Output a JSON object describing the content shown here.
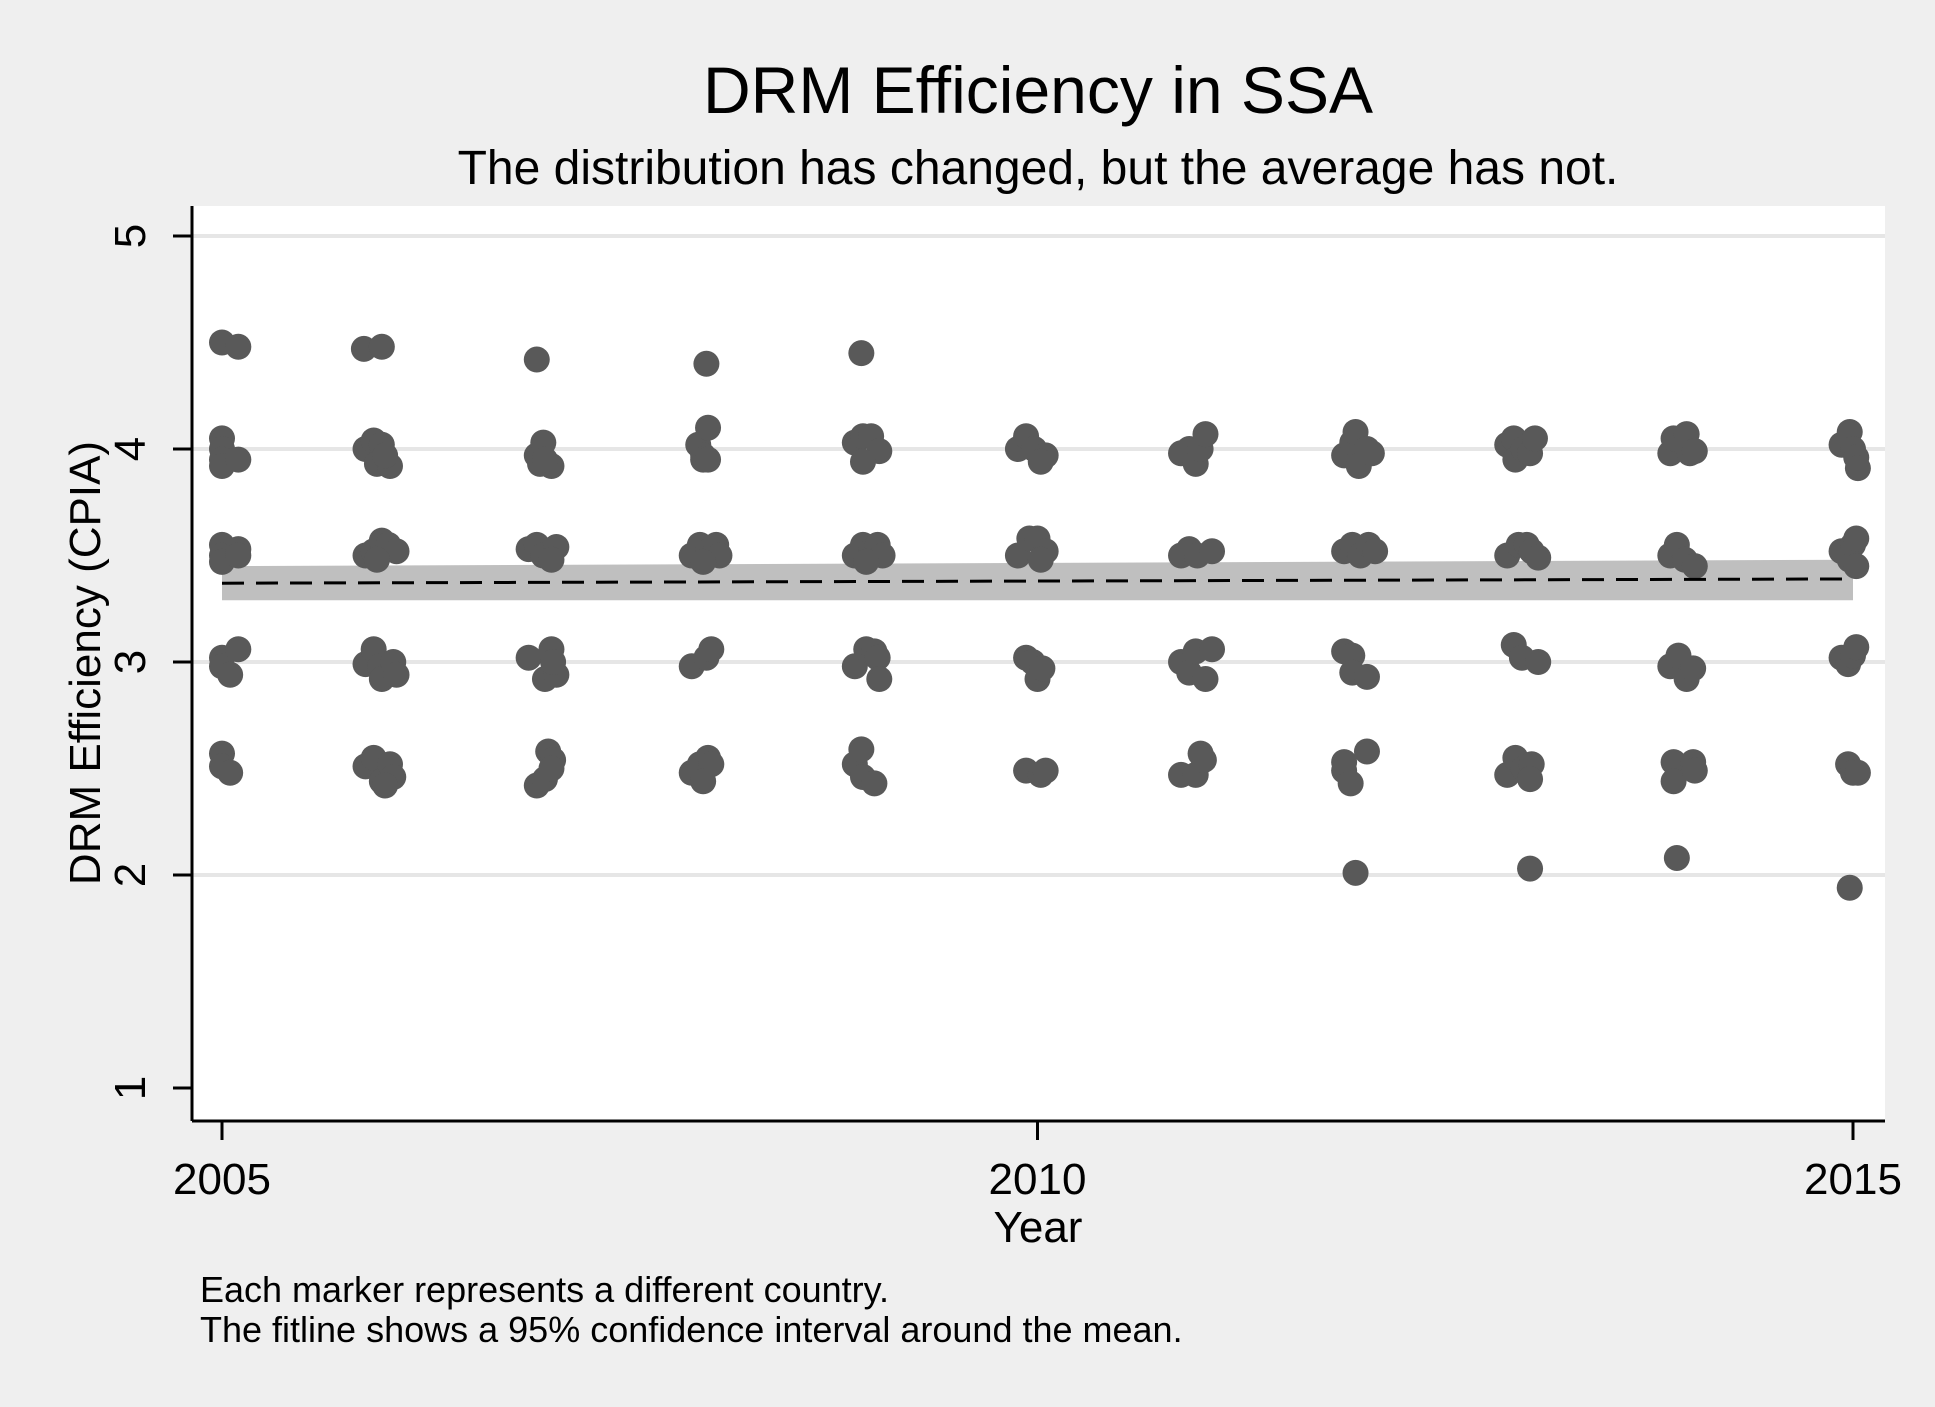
{
  "chart_data": {
    "type": "scatter",
    "title": "DRM Efficiency in SSA",
    "subtitle": "The distribution has changed, but the average has not.",
    "xlabel": "Year",
    "ylabel": "DRM Efficiency (CPIA)",
    "xlim": [
      2005,
      2015
    ],
    "ylim": [
      1,
      5
    ],
    "xticks": [
      2005,
      2010,
      2015
    ],
    "yticks": [
      1,
      2,
      3,
      4,
      5
    ],
    "grid": true,
    "legend": "none",
    "notes": [
      "Each marker represents a different country.",
      "The fitline shows a 95% confidence interval around the mean."
    ],
    "colors": {
      "background": "#efefef",
      "plot_background": "#ffffff",
      "marker": "#595959",
      "ci_band": "#bfbfbf",
      "fit_line": "#000000",
      "grid": "#e6e6e6"
    },
    "fit": {
      "type": "mean",
      "x": [
        2005,
        2015
      ],
      "mean": [
        3.37,
        3.39
      ],
      "ci_low": [
        3.29,
        3.29
      ],
      "ci_high": [
        3.45,
        3.48
      ]
    },
    "series": [
      {
        "points": [
          {
            "x": 2005.0,
            "y": 4.5
          },
          {
            "x": 2005.1,
            "y": 4.48
          },
          {
            "x": 2005.0,
            "y": 4.05
          },
          {
            "x": 2005.0,
            "y": 4.0
          },
          {
            "x": 2005.0,
            "y": 3.95
          },
          {
            "x": 2005.0,
            "y": 3.92
          },
          {
            "x": 2005.1,
            "y": 3.95
          },
          {
            "x": 2005.0,
            "y": 3.55
          },
          {
            "x": 2005.0,
            "y": 3.5
          },
          {
            "x": 2005.0,
            "y": 3.47
          },
          {
            "x": 2005.1,
            "y": 3.53
          },
          {
            "x": 2005.1,
            "y": 3.5
          },
          {
            "x": 2005.0,
            "y": 3.02
          },
          {
            "x": 2005.0,
            "y": 2.98
          },
          {
            "x": 2005.05,
            "y": 2.94
          },
          {
            "x": 2005.1,
            "y": 3.06
          },
          {
            "x": 2005.0,
            "y": 2.57
          },
          {
            "x": 2005.0,
            "y": 2.51
          },
          {
            "x": 2005.05,
            "y": 2.48
          },
          {
            "x": 2005.87,
            "y": 4.47
          },
          {
            "x": 2005.98,
            "y": 4.48
          },
          {
            "x": 2005.88,
            "y": 4.0
          },
          {
            "x": 2005.93,
            "y": 4.04
          },
          {
            "x": 2005.98,
            "y": 4.02
          },
          {
            "x": 2005.95,
            "y": 3.93
          },
          {
            "x": 2006.03,
            "y": 3.92
          },
          {
            "x": 2006.0,
            "y": 3.97
          },
          {
            "x": 2005.88,
            "y": 3.5
          },
          {
            "x": 2005.93,
            "y": 3.52
          },
          {
            "x": 2005.98,
            "y": 3.57
          },
          {
            "x": 2006.02,
            "y": 3.55
          },
          {
            "x": 2006.07,
            "y": 3.52
          },
          {
            "x": 2005.95,
            "y": 3.48
          },
          {
            "x": 2005.88,
            "y": 2.99
          },
          {
            "x": 2005.93,
            "y": 3.06
          },
          {
            "x": 2005.97,
            "y": 2.98
          },
          {
            "x": 2005.98,
            "y": 2.92
          },
          {
            "x": 2006.05,
            "y": 3.0
          },
          {
            "x": 2006.07,
            "y": 2.94
          },
          {
            "x": 2005.88,
            "y": 2.51
          },
          {
            "x": 2005.93,
            "y": 2.55
          },
          {
            "x": 2005.98,
            "y": 2.44
          },
          {
            "x": 2006.03,
            "y": 2.52
          },
          {
            "x": 2006.05,
            "y": 2.46
          },
          {
            "x": 2006.0,
            "y": 2.42
          },
          {
            "x": 2006.93,
            "y": 4.42
          },
          {
            "x": 2006.93,
            "y": 3.97
          },
          {
            "x": 2006.97,
            "y": 4.03
          },
          {
            "x": 2006.95,
            "y": 3.93
          },
          {
            "x": 2007.02,
            "y": 3.92
          },
          {
            "x": 2006.98,
            "y": 3.95
          },
          {
            "x": 2006.88,
            "y": 3.53
          },
          {
            "x": 2006.93,
            "y": 3.55
          },
          {
            "x": 2006.97,
            "y": 3.5
          },
          {
            "x": 2007.05,
            "y": 3.54
          },
          {
            "x": 2007.02,
            "y": 3.48
          },
          {
            "x": 2006.88,
            "y": 3.02
          },
          {
            "x": 2006.98,
            "y": 2.92
          },
          {
            "x": 2007.02,
            "y": 3.06
          },
          {
            "x": 2007.05,
            "y": 2.94
          },
          {
            "x": 2007.03,
            "y": 3.0
          },
          {
            "x": 2006.93,
            "y": 2.42
          },
          {
            "x": 2006.98,
            "y": 2.45
          },
          {
            "x": 2007.0,
            "y": 2.58
          },
          {
            "x": 2007.03,
            "y": 2.54
          },
          {
            "x": 2007.02,
            "y": 2.5
          },
          {
            "x": 2007.97,
            "y": 4.4
          },
          {
            "x": 2007.92,
            "y": 4.02
          },
          {
            "x": 2007.95,
            "y": 3.97
          },
          {
            "x": 2007.95,
            "y": 3.95
          },
          {
            "x": 2007.98,
            "y": 4.1
          },
          {
            "x": 2007.98,
            "y": 3.95
          },
          {
            "x": 2007.88,
            "y": 3.5
          },
          {
            "x": 2007.93,
            "y": 3.55
          },
          {
            "x": 2007.98,
            "y": 3.52
          },
          {
            "x": 2008.03,
            "y": 3.55
          },
          {
            "x": 2008.05,
            "y": 3.5
          },
          {
            "x": 2007.95,
            "y": 3.47
          },
          {
            "x": 2007.88,
            "y": 2.98
          },
          {
            "x": 2007.97,
            "y": 3.02
          },
          {
            "x": 2008.0,
            "y": 3.06
          },
          {
            "x": 2007.88,
            "y": 2.48
          },
          {
            "x": 2007.93,
            "y": 2.52
          },
          {
            "x": 2007.98,
            "y": 2.55
          },
          {
            "x": 2008.0,
            "y": 2.52
          },
          {
            "x": 2007.95,
            "y": 2.44
          },
          {
            "x": 2008.92,
            "y": 4.45
          },
          {
            "x": 2008.88,
            "y": 4.03
          },
          {
            "x": 2008.93,
            "y": 4.06
          },
          {
            "x": 2008.98,
            "y": 4.06
          },
          {
            "x": 2009.03,
            "y": 3.99
          },
          {
            "x": 2008.93,
            "y": 3.94
          },
          {
            "x": 2008.88,
            "y": 3.5
          },
          {
            "x": 2008.93,
            "y": 3.55
          },
          {
            "x": 2008.98,
            "y": 3.52
          },
          {
            "x": 2009.02,
            "y": 3.55
          },
          {
            "x": 2009.05,
            "y": 3.5
          },
          {
            "x": 2008.95,
            "y": 3.47
          },
          {
            "x": 2008.88,
            "y": 2.98
          },
          {
            "x": 2008.95,
            "y": 3.06
          },
          {
            "x": 2009.0,
            "y": 3.05
          },
          {
            "x": 2009.02,
            "y": 3.02
          },
          {
            "x": 2009.03,
            "y": 2.92
          },
          {
            "x": 2008.88,
            "y": 2.52
          },
          {
            "x": 2008.92,
            "y": 2.59
          },
          {
            "x": 2008.93,
            "y": 2.46
          },
          {
            "x": 2009.0,
            "y": 2.43
          },
          {
            "x": 2009.88,
            "y": 4.0
          },
          {
            "x": 2009.93,
            "y": 4.06
          },
          {
            "x": 2009.98,
            "y": 4.0
          },
          {
            "x": 2010.05,
            "y": 3.97
          },
          {
            "x": 2010.02,
            "y": 3.94
          },
          {
            "x": 2009.88,
            "y": 3.5
          },
          {
            "x": 2009.95,
            "y": 3.58
          },
          {
            "x": 2010.0,
            "y": 3.58
          },
          {
            "x": 2010.05,
            "y": 3.52
          },
          {
            "x": 2010.02,
            "y": 3.48
          },
          {
            "x": 2009.93,
            "y": 3.02
          },
          {
            "x": 2009.97,
            "y": 3.0
          },
          {
            "x": 2010.0,
            "y": 2.92
          },
          {
            "x": 2010.03,
            "y": 2.97
          },
          {
            "x": 2009.93,
            "y": 2.49
          },
          {
            "x": 2010.02,
            "y": 2.47
          },
          {
            "x": 2010.05,
            "y": 2.49
          },
          {
            "x": 2010.88,
            "y": 3.98
          },
          {
            "x": 2010.93,
            "y": 4.0
          },
          {
            "x": 2010.97,
            "y": 3.93
          },
          {
            "x": 2011.0,
            "y": 4.0
          },
          {
            "x": 2011.03,
            "y": 4.07
          },
          {
            "x": 2010.88,
            "y": 3.5
          },
          {
            "x": 2010.93,
            "y": 3.53
          },
          {
            "x": 2010.98,
            "y": 3.5
          },
          {
            "x": 2011.07,
            "y": 3.52
          },
          {
            "x": 2010.88,
            "y": 3.0
          },
          {
            "x": 2010.93,
            "y": 2.95
          },
          {
            "x": 2010.97,
            "y": 3.05
          },
          {
            "x": 2011.03,
            "y": 2.92
          },
          {
            "x": 2011.07,
            "y": 3.06
          },
          {
            "x": 2010.88,
            "y": 2.47
          },
          {
            "x": 2010.97,
            "y": 2.47
          },
          {
            "x": 2011.0,
            "y": 2.57
          },
          {
            "x": 2011.02,
            "y": 2.54
          },
          {
            "x": 2011.88,
            "y": 3.97
          },
          {
            "x": 2011.93,
            "y": 4.03
          },
          {
            "x": 2011.95,
            "y": 4.08
          },
          {
            "x": 2011.97,
            "y": 3.92
          },
          {
            "x": 2012.02,
            "y": 4.0
          },
          {
            "x": 2012.05,
            "y": 3.98
          },
          {
            "x": 2011.88,
            "y": 3.52
          },
          {
            "x": 2011.93,
            "y": 3.55
          },
          {
            "x": 2011.98,
            "y": 3.5
          },
          {
            "x": 2012.03,
            "y": 3.55
          },
          {
            "x": 2012.07,
            "y": 3.52
          },
          {
            "x": 2011.88,
            "y": 3.05
          },
          {
            "x": 2011.93,
            "y": 3.03
          },
          {
            "x": 2011.93,
            "y": 2.95
          },
          {
            "x": 2012.02,
            "y": 2.93
          },
          {
            "x": 2011.88,
            "y": 2.49
          },
          {
            "x": 2011.88,
            "y": 2.53
          },
          {
            "x": 2011.92,
            "y": 2.43
          },
          {
            "x": 2012.02,
            "y": 2.58
          },
          {
            "x": 2011.95,
            "y": 2.01
          },
          {
            "x": 2012.88,
            "y": 4.02
          },
          {
            "x": 2012.92,
            "y": 4.05
          },
          {
            "x": 2012.93,
            "y": 3.95
          },
          {
            "x": 2012.98,
            "y": 4.0
          },
          {
            "x": 2013.02,
            "y": 3.98
          },
          {
            "x": 2013.05,
            "y": 4.05
          },
          {
            "x": 2012.88,
            "y": 3.5
          },
          {
            "x": 2012.95,
            "y": 3.55
          },
          {
            "x": 2013.0,
            "y": 3.55
          },
          {
            "x": 2013.03,
            "y": 3.52
          },
          {
            "x": 2013.07,
            "y": 3.49
          },
          {
            "x": 2012.92,
            "y": 3.08
          },
          {
            "x": 2012.97,
            "y": 3.02
          },
          {
            "x": 2013.07,
            "y": 3.0
          },
          {
            "x": 2012.88,
            "y": 2.47
          },
          {
            "x": 2012.93,
            "y": 2.55
          },
          {
            "x": 2012.98,
            "y": 2.5
          },
          {
            "x": 2013.03,
            "y": 2.52
          },
          {
            "x": 2013.02,
            "y": 2.45
          },
          {
            "x": 2013.02,
            "y": 2.03
          },
          {
            "x": 2013.88,
            "y": 3.98
          },
          {
            "x": 2013.9,
            "y": 4.05
          },
          {
            "x": 2013.98,
            "y": 4.07
          },
          {
            "x": 2014.0,
            "y": 3.98
          },
          {
            "x": 2014.03,
            "y": 3.99
          },
          {
            "x": 2013.88,
            "y": 3.5
          },
          {
            "x": 2013.92,
            "y": 3.55
          },
          {
            "x": 2013.97,
            "y": 3.48
          },
          {
            "x": 2014.03,
            "y": 3.45
          },
          {
            "x": 2013.88,
            "y": 2.98
          },
          {
            "x": 2013.93,
            "y": 3.03
          },
          {
            "x": 2013.98,
            "y": 2.92
          },
          {
            "x": 2014.02,
            "y": 2.97
          },
          {
            "x": 2013.9,
            "y": 2.53
          },
          {
            "x": 2013.9,
            "y": 2.44
          },
          {
            "x": 2014.02,
            "y": 2.53
          },
          {
            "x": 2014.03,
            "y": 2.49
          },
          {
            "x": 2013.92,
            "y": 2.08
          },
          {
            "x": 2014.93,
            "y": 4.02
          },
          {
            "x": 2014.98,
            "y": 4.08
          },
          {
            "x": 2015.0,
            "y": 4.0
          },
          {
            "x": 2015.02,
            "y": 3.96
          },
          {
            "x": 2015.03,
            "y": 3.91
          },
          {
            "x": 2014.93,
            "y": 3.52
          },
          {
            "x": 2014.98,
            "y": 3.48
          },
          {
            "x": 2015.0,
            "y": 3.55
          },
          {
            "x": 2015.02,
            "y": 3.58
          },
          {
            "x": 2015.02,
            "y": 3.45
          },
          {
            "x": 2014.93,
            "y": 3.02
          },
          {
            "x": 2014.97,
            "y": 2.99
          },
          {
            "x": 2015.0,
            "y": 3.03
          },
          {
            "x": 2015.02,
            "y": 3.07
          },
          {
            "x": 2014.97,
            "y": 2.52
          },
          {
            "x": 2015.0,
            "y": 2.48
          },
          {
            "x": 2015.03,
            "y": 2.48
          },
          {
            "x": 2014.98,
            "y": 1.94
          }
        ]
      }
    ]
  }
}
